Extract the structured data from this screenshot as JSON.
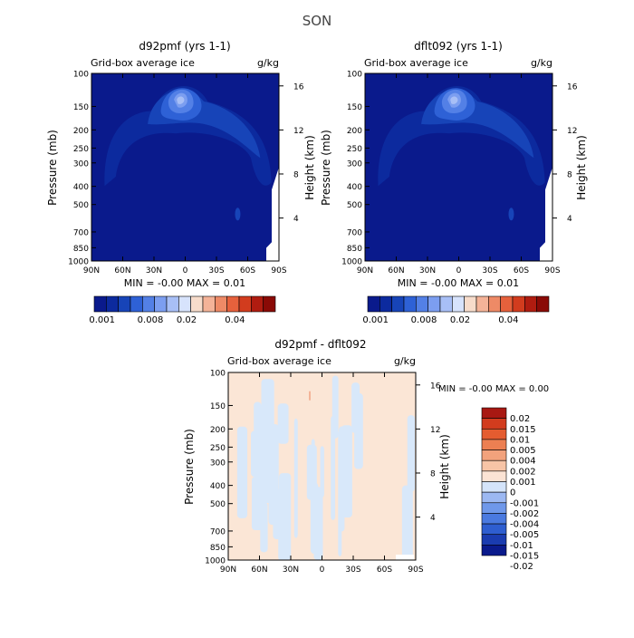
{
  "figure": {
    "title": "SON"
  },
  "colors": {
    "background": "#0a1a8c",
    "ramp_positive": [
      "#0a1a8c",
      "#0c2a9e",
      "#1744b8",
      "#2e61d6",
      "#5380e6",
      "#7c9ef0",
      "#a8bff6",
      "#d7e3fc",
      "#f7dccb",
      "#f4b398",
      "#ee8a66",
      "#e6613c",
      "#d23c1e",
      "#b01c10",
      "#8a0a06"
    ],
    "ramp_diff": [
      "#0a1a8c",
      "#1a3cb0",
      "#2e5ed0",
      "#4a7ae0",
      "#6f98ea",
      "#9cb8f2",
      "#d4e4fa",
      "#fbe3d4",
      "#f7c4a6",
      "#f2a27c",
      "#ec7f52",
      "#e45c30",
      "#d23c1e",
      "#a81812"
    ],
    "diff_neg": "#d8e8fa",
    "diff_pos": "#fbe6d6"
  },
  "chart_data": [
    {
      "type": "heatmap",
      "title": "d92pmf (yrs 1-1)",
      "subtitle_left": "Grid-box average ice",
      "subtitle_right": "g/kg",
      "ylabel": "Pressure (mb)",
      "ylabel_right": "Height (km)",
      "x_ticks": [
        "90N",
        "60N",
        "30N",
        "0",
        "30S",
        "60S",
        "90S"
      ],
      "y_ticks": [
        "100",
        "150",
        "200",
        "250",
        "300",
        "400",
        "500",
        "700",
        "850",
        "1000"
      ],
      "height_ticks": [
        "16",
        "12",
        "8",
        "4"
      ],
      "stats": "MIN = -0.00   MAX = 0.01",
      "colorbar_labels": [
        "0.001",
        "0.008",
        "0.02",
        "0.04"
      ],
      "contour_levels": [
        0.001,
        0.002,
        0.004,
        0.006,
        0.008,
        0.01,
        0.015,
        0.02,
        0.025,
        0.03,
        0.035,
        0.04,
        0.045,
        0.05
      ],
      "lat_range": [
        90,
        -90
      ],
      "pressure_range": [
        100,
        1000
      ]
    },
    {
      "type": "heatmap",
      "title": "dflt092 (yrs 1-1)",
      "subtitle_left": "Grid-box average ice",
      "subtitle_right": "g/kg",
      "ylabel": "Pressure (mb)",
      "ylabel_right": "Height (km)",
      "x_ticks": [
        "90N",
        "60N",
        "30N",
        "0",
        "30S",
        "60S",
        "90S"
      ],
      "y_ticks": [
        "100",
        "150",
        "200",
        "250",
        "300",
        "400",
        "500",
        "700",
        "850",
        "1000"
      ],
      "height_ticks": [
        "16",
        "12",
        "8",
        "4"
      ],
      "stats": "MIN = -0.00   MAX = 0.01",
      "colorbar_labels": [
        "0.001",
        "0.008",
        "0.02",
        "0.04"
      ],
      "contour_levels": [
        0.001,
        0.002,
        0.004,
        0.006,
        0.008,
        0.01,
        0.015,
        0.02,
        0.025,
        0.03,
        0.035,
        0.04,
        0.045,
        0.05
      ],
      "lat_range": [
        90,
        -90
      ],
      "pressure_range": [
        100,
        1000
      ]
    },
    {
      "type": "heatmap",
      "title": "d92pmf - dflt092",
      "subtitle_left": "Grid-box average ice",
      "subtitle_right": "g/kg",
      "ylabel": "Pressure (mb)",
      "ylabel_right": "Height (km)",
      "x_ticks": [
        "90N",
        "60N",
        "30N",
        "0",
        "30S",
        "60S",
        "90S"
      ],
      "y_ticks": [
        "100",
        "150",
        "200",
        "250",
        "300",
        "400",
        "500",
        "700",
        "850",
        "1000"
      ],
      "height_ticks": [
        "16",
        "12",
        "8",
        "4"
      ],
      "stats": "MIN =  -0.00   MAX =   0.00",
      "colorbar_labels": [
        "0.02",
        "0.015",
        "0.01",
        "0.005",
        "0.004",
        "0.002",
        "0.001",
        "0",
        "-0.001",
        "-0.002",
        "-0.004",
        "-0.005",
        "-0.01",
        "-0.015",
        "-0.02"
      ],
      "lat_range": [
        90,
        -90
      ],
      "pressure_range": [
        100,
        1000
      ]
    }
  ]
}
